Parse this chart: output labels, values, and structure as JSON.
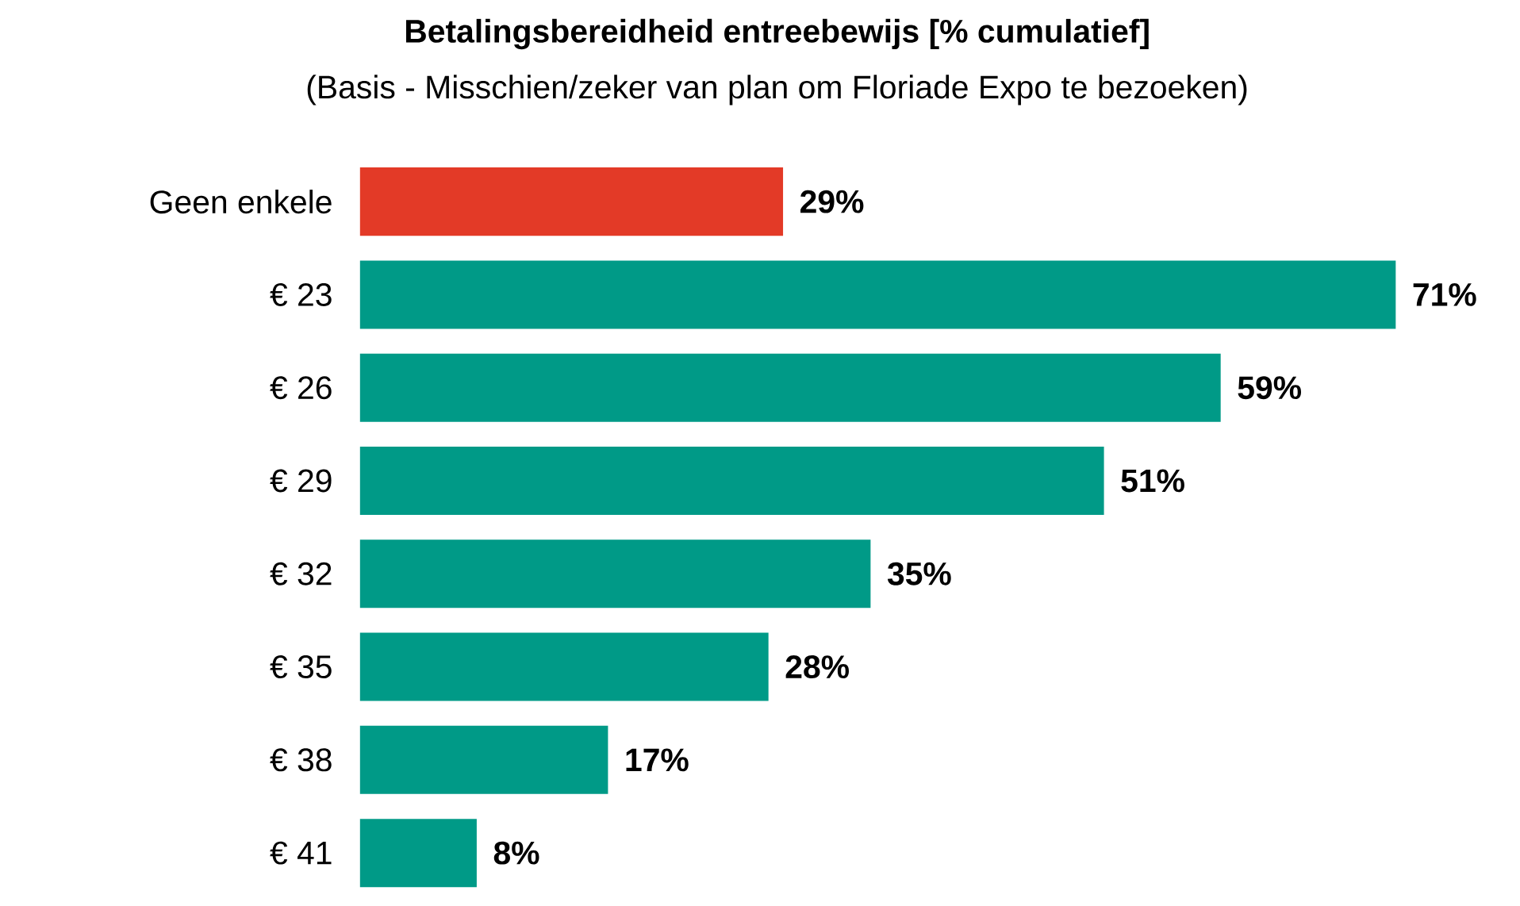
{
  "chart_data": {
    "type": "bar",
    "orientation": "horizontal",
    "title": "Betalingsbereidheid entreebewijs [% cumulatief]",
    "subtitle": "(Basis - Misschien/zeker van plan om Floriade Expo te bezoeken)",
    "categories": [
      "Geen enkele",
      "€ 23",
      "€ 26",
      "€ 29",
      "€ 32",
      "€ 35",
      "€ 38",
      "€ 41"
    ],
    "values": [
      29,
      71,
      59,
      51,
      35,
      28,
      17,
      8
    ],
    "value_labels": [
      "29%",
      "71%",
      "59%",
      "51%",
      "35%",
      "28%",
      "17%",
      "8%"
    ],
    "colors": [
      "#e33a27",
      "#009a87",
      "#009a87",
      "#009a87",
      "#009a87",
      "#009a87",
      "#009a87",
      "#009a87"
    ]
  }
}
